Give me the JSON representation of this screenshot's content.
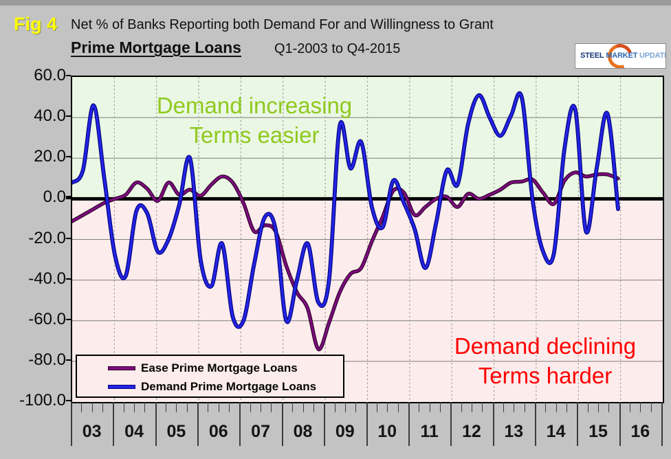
{
  "window": {
    "fig_label": "Fig 4"
  },
  "header": {
    "title_line1": "Net % of Banks Reporting both Demand For and Willingness to Grant",
    "title_bold": "Prime Mortgage Loans",
    "title_range": "Q1-2003 to Q4-2015"
  },
  "logo": {
    "word1": "STEEL",
    "word2": "MARKET",
    "word3": "UPDATE",
    "accent_color": "#e8721f"
  },
  "annotations": {
    "positive_line1": "Demand increasing",
    "positive_line2": "Terms easier",
    "positive_color": "#8fc91e",
    "negative_line1": "Demand declining",
    "negative_line2": "Terms harder",
    "negative_color": "#ff0000"
  },
  "legend": {
    "items": [
      {
        "label": "Ease Prime Mortgage Loans",
        "color": "#7f0b7f"
      },
      {
        "label": "Demand Prime Mortgage Loans",
        "color": "#2424e4"
      }
    ]
  },
  "chart_data": {
    "type": "line",
    "title": "Net % of Banks Reporting both Demand For and Willingness to Grant Prime Mortgage Loans",
    "period": "Q1-2003 to Q4-2015",
    "x_unit": "quarter",
    "quarters_per_year": 4,
    "year_labels": [
      "03",
      "04",
      "05",
      "06",
      "07",
      "08",
      "09",
      "10",
      "11",
      "12",
      "13",
      "14",
      "15",
      "16"
    ],
    "ylim": [
      -100,
      60
    ],
    "ytick_values": [
      60,
      40,
      20,
      0,
      -20,
      -40,
      -60,
      -80,
      -100
    ],
    "ytick_labels": [
      "60.0",
      "40.0",
      "20.0",
      "0.0",
      "-20.0",
      "-40.0",
      "-60.0",
      "-80.0",
      "-100.0"
    ],
    "zero_line": 0,
    "grid": true,
    "legend_position": "bottom-left-inside",
    "background_zones": [
      {
        "range": [
          0,
          60
        ],
        "color": "#eaf7e4",
        "meaning": "Demand increasing / Terms easier"
      },
      {
        "range": [
          -100,
          0
        ],
        "color": "#fdecec",
        "meaning": "Demand declining / Terms harder"
      }
    ],
    "series": [
      {
        "name": "Ease Prime Mortgage Loans",
        "color": "#7f0b7f",
        "edge": "#2b032b",
        "values": [
          -11,
          -8,
          -5,
          -2,
          0,
          2,
          8,
          5,
          -1,
          8,
          2,
          4.5,
          1.5,
          7,
          11,
          8,
          -2,
          -16,
          -13,
          -16,
          -33,
          -46,
          -54,
          -74,
          -61,
          -46,
          -37,
          -34,
          -21,
          -9,
          4,
          3,
          -8,
          -4,
          0,
          1,
          -4,
          2.5,
          0,
          2,
          4.5,
          8,
          8.5,
          9.5,
          3,
          -2.5,
          9,
          13,
          11,
          12,
          12,
          10
        ]
      },
      {
        "name": "Demand Prime Mortgage Loans",
        "color": "#2424e4",
        "edge": "#000080",
        "values": [
          8,
          14,
          46,
          10,
          -28,
          -38,
          -6,
          -7,
          -26,
          -20,
          -3,
          20,
          -30,
          -43,
          -22,
          -58,
          -60,
          -32,
          -9,
          -15,
          -60,
          -40,
          -22,
          -51,
          -40,
          36,
          15,
          28,
          -4,
          -14,
          9,
          -2,
          -15,
          -34,
          -12,
          14,
          7,
          37,
          51,
          40,
          31,
          41,
          50,
          0,
          -26,
          -27,
          25,
          44,
          -16,
          15,
          42,
          -5
        ]
      }
    ]
  }
}
